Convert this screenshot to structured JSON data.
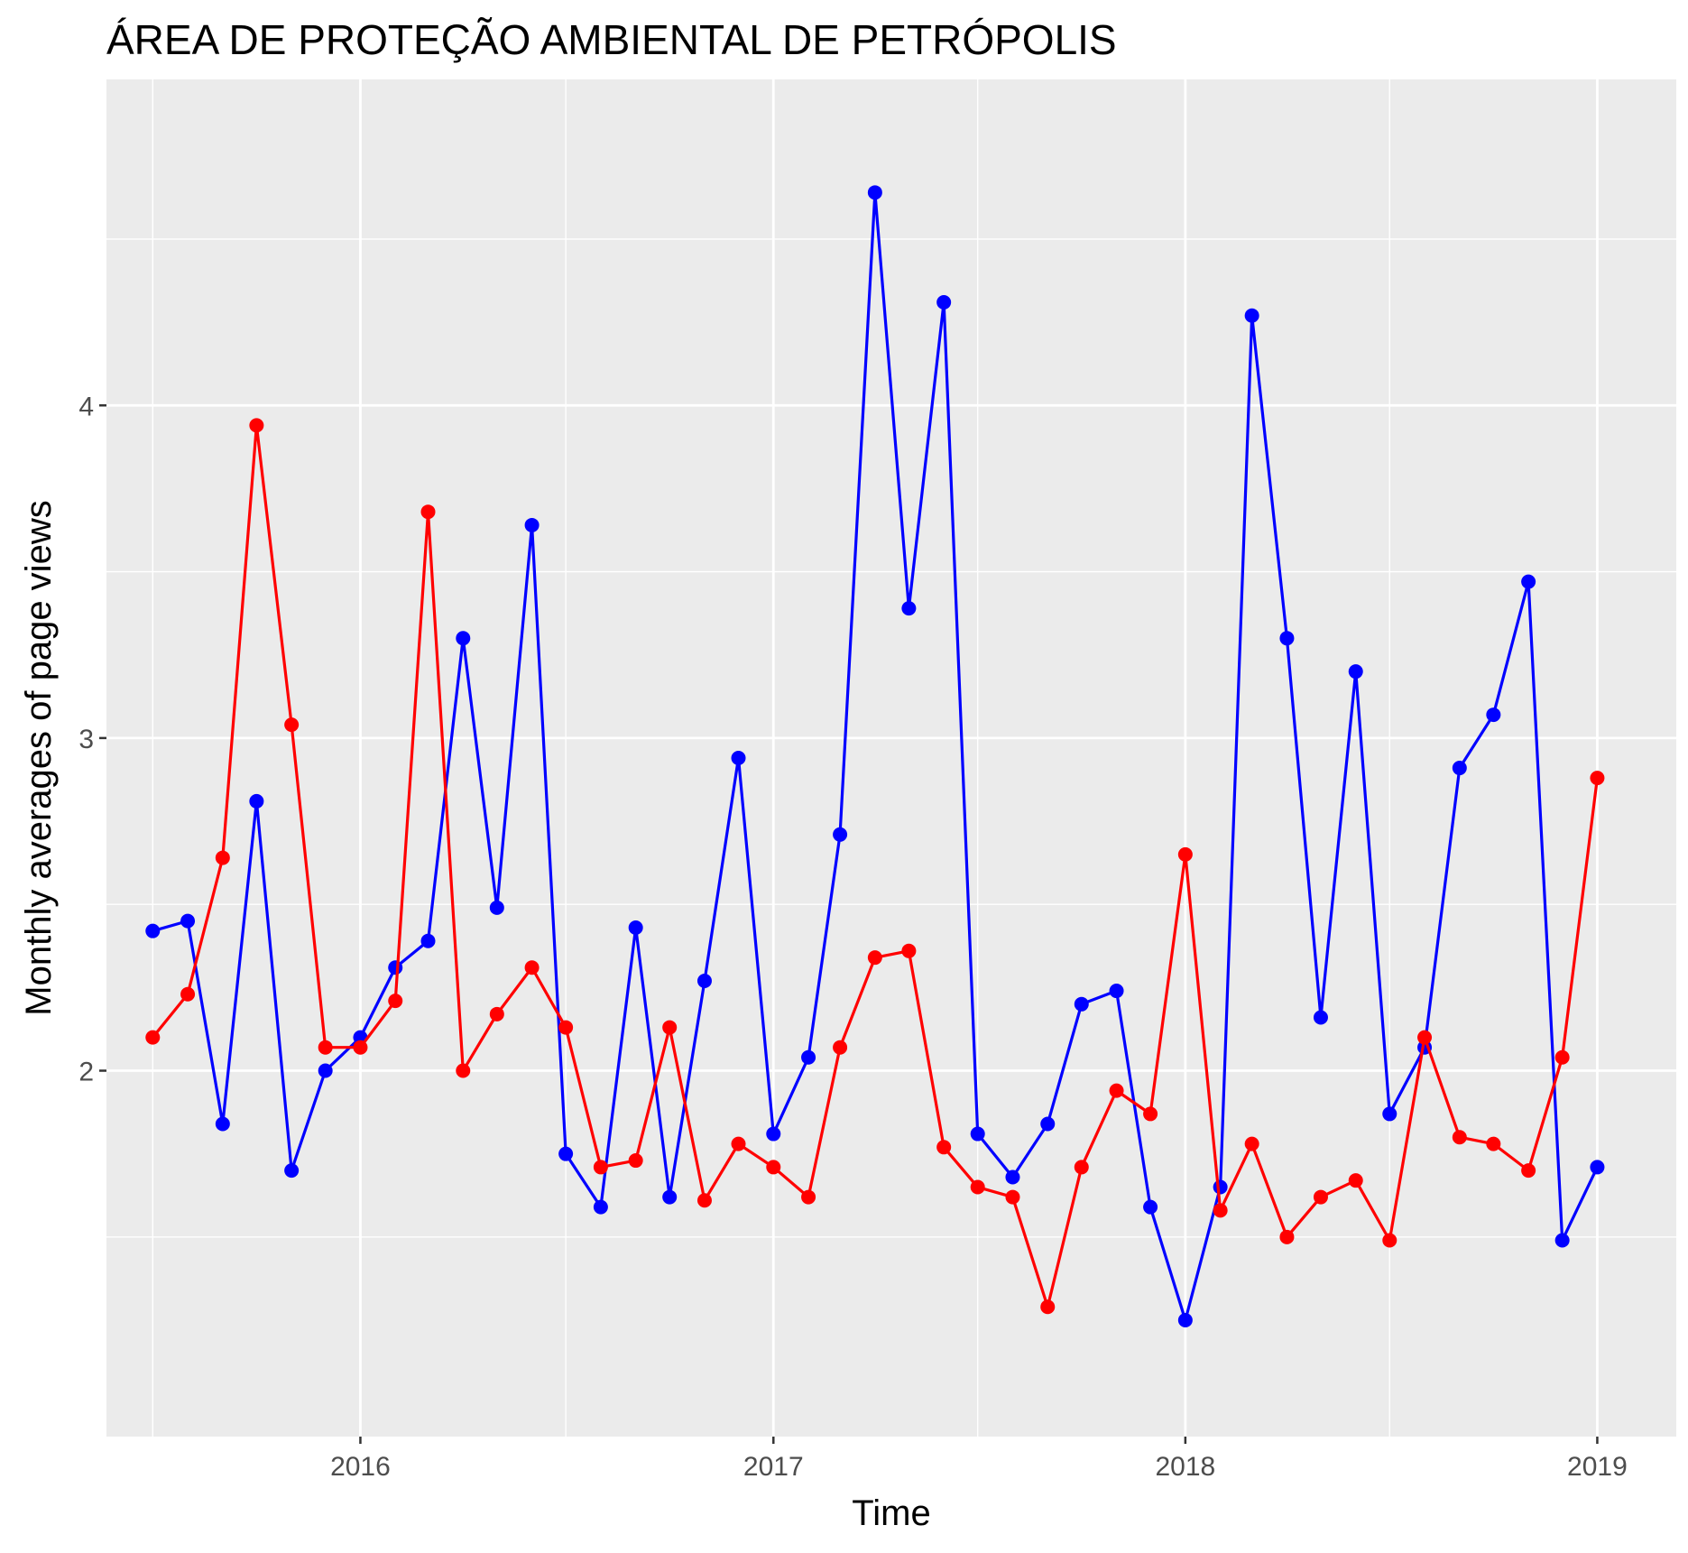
{
  "chart_data": {
    "type": "line",
    "title": "ÁREA DE PROTEÇÃO AMBIENTAL DE PETRÓPOLIS",
    "xlabel": "Time",
    "ylabel": "Monthly averages of page views",
    "x_ticks": [
      "2016",
      "2017",
      "2018",
      "2019"
    ],
    "y_ticks": [
      "2",
      "3",
      "4"
    ],
    "x_range": [
      "2015-05-21",
      "2019-03-12"
    ],
    "ylim": [
      0.9,
      4.98
    ],
    "grid": true,
    "panel_background": "#ebebeb",
    "x": [
      "2015-07-01",
      "2015-08-01",
      "2015-09-01",
      "2015-10-01",
      "2015-11-01",
      "2015-12-01",
      "2016-01-01",
      "2016-02-01",
      "2016-03-01",
      "2016-04-01",
      "2016-05-01",
      "2016-06-01",
      "2016-07-01",
      "2016-08-01",
      "2016-09-01",
      "2016-10-01",
      "2016-11-01",
      "2016-12-01",
      "2017-01-01",
      "2017-02-01",
      "2017-03-01",
      "2017-04-01",
      "2017-05-01",
      "2017-06-01",
      "2017-07-01",
      "2017-08-01",
      "2017-09-01",
      "2017-10-01",
      "2017-11-01",
      "2017-12-01",
      "2018-01-01",
      "2018-02-01",
      "2018-03-01",
      "2018-04-01",
      "2018-05-01",
      "2018-06-01",
      "2018-07-01",
      "2018-08-01",
      "2018-09-01",
      "2018-10-01",
      "2018-11-01",
      "2018-12-01",
      "2019-01-01"
    ],
    "series": [
      {
        "color": "#0000ff",
        "values": [
          2.42,
          2.45,
          1.84,
          2.81,
          1.7,
          2.0,
          2.1,
          2.31,
          2.39,
          3.3,
          2.49,
          3.64,
          1.75,
          1.59,
          2.43,
          1.62,
          2.27,
          2.94,
          1.81,
          2.04,
          2.71,
          4.64,
          3.39,
          4.31,
          1.81,
          1.68,
          1.84,
          2.2,
          2.24,
          1.59,
          1.25,
          1.65,
          4.27,
          3.3,
          2.16,
          3.2,
          1.87,
          2.07,
          2.91,
          3.07,
          3.47,
          1.49,
          1.71
        ]
      },
      {
        "color": "#ff0000",
        "values": [
          2.1,
          2.23,
          2.64,
          3.94,
          3.04,
          2.07,
          2.07,
          2.21,
          3.68,
          2.0,
          2.17,
          2.31,
          2.13,
          1.71,
          1.73,
          2.13,
          1.61,
          1.78,
          1.71,
          1.62,
          2.07,
          2.34,
          2.36,
          1.77,
          1.65,
          1.62,
          1.29,
          1.71,
          1.94,
          1.87,
          2.65,
          1.58,
          1.78,
          1.5,
          1.62,
          1.67,
          1.49,
          2.1,
          1.8,
          1.78,
          1.7,
          2.04,
          2.88
        ]
      }
    ]
  }
}
